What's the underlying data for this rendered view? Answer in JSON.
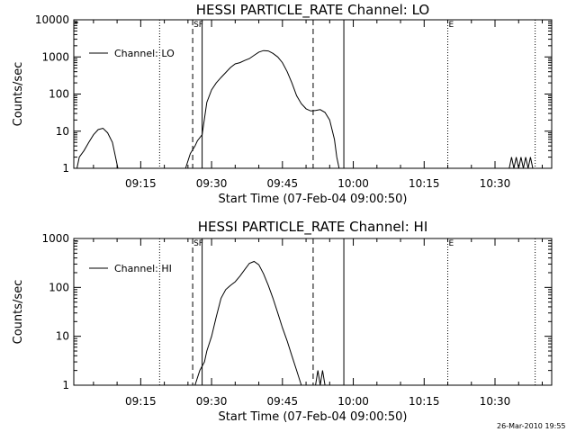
{
  "stamp": "26-Mar-2010 19:55",
  "chart_data": [
    {
      "type": "line",
      "title": "HESSI PARTICLE_RATE Channel: LO",
      "xlabel": "Start Time (07-Feb-04 09:00:50)",
      "ylabel": "Counts/sec",
      "yscale": "log",
      "ylim": [
        1,
        10000
      ],
      "xlim": [
        "09:00:50",
        "10:42:00"
      ],
      "ytick_labels": [
        "1",
        "10",
        "100",
        "1000",
        "10000"
      ],
      "xtick_labels": [
        "09:15",
        "09:30",
        "09:45",
        "10:00",
        "10:15",
        "10:30"
      ],
      "legend": {
        "placement": "top-left",
        "entries": [
          "Channel: LO"
        ]
      },
      "markers": [
        "SF",
        "E"
      ],
      "dotted_lines": [
        "09:19:00",
        "10:20:00",
        "10:38:30"
      ],
      "dashed_lines": [
        "09:26:00",
        "09:51:30"
      ],
      "solid_lines": [
        "09:28:00",
        "09:58:00"
      ],
      "series": [
        {
          "name": "Channel: LO",
          "segments": [
            [
              [
                "09:01:30",
                1.0
              ],
              [
                "09:02:00",
                2.0
              ],
              [
                "09:03:00",
                3.0
              ],
              [
                "09:04:00",
                5.0
              ],
              [
                "09:05:00",
                8.0
              ],
              [
                "09:06:00",
                11.0
              ],
              [
                "09:07:00",
                12.0
              ],
              [
                "09:08:00",
                9.0
              ],
              [
                "09:09:00",
                5.0
              ],
              [
                "09:09:40",
                2.0
              ],
              [
                "09:10:10",
                1.0
              ]
            ],
            [
              [
                "09:24:30",
                1.0
              ],
              [
                "09:25:30",
                2.5
              ],
              [
                "09:26:30",
                4.0
              ],
              [
                "09:27:00",
                5.5
              ],
              [
                "09:28:00",
                8.0
              ],
              [
                "09:29:00",
                60.0
              ],
              [
                "09:30:00",
                130.0
              ],
              [
                "09:31:00",
                200.0
              ],
              [
                "09:32:00",
                280.0
              ],
              [
                "09:33:00",
                380.0
              ],
              [
                "09:34:00",
                520.0
              ],
              [
                "09:35:00",
                650.0
              ],
              [
                "09:36:00",
                700.0
              ],
              [
                "09:37:00",
                800.0
              ],
              [
                "09:38:00",
                900.0
              ],
              [
                "09:39:00",
                1100.0
              ],
              [
                "09:40:00",
                1350.0
              ],
              [
                "09:41:00",
                1480.0
              ],
              [
                "09:42:00",
                1450.0
              ],
              [
                "09:43:00",
                1250.0
              ],
              [
                "09:44:00",
                1000.0
              ],
              [
                "09:45:00",
                700.0
              ],
              [
                "09:46:00",
                400.0
              ],
              [
                "09:47:00",
                200.0
              ],
              [
                "09:48:00",
                90.0
              ],
              [
                "09:49:00",
                55.0
              ],
              [
                "09:50:00",
                40.0
              ],
              [
                "09:51:00",
                35.0
              ],
              [
                "09:52:00",
                36.0
              ],
              [
                "09:53:00",
                38.0
              ],
              [
                "09:54:00",
                32.0
              ],
              [
                "09:55:00",
                20.0
              ],
              [
                "09:56:00",
                6.0
              ],
              [
                "09:56:30",
                2.0
              ],
              [
                "09:57:00",
                1.0
              ]
            ],
            [
              [
                "10:33:00",
                1.0
              ],
              [
                "10:33:30",
                2.0
              ],
              [
                "10:34:00",
                1.0
              ],
              [
                "10:34:30",
                2.0
              ],
              [
                "10:35:00",
                1.0
              ],
              [
                "10:35:30",
                2.0
              ],
              [
                "10:36:00",
                1.0
              ],
              [
                "10:36:30",
                2.0
              ],
              [
                "10:37:00",
                1.0
              ],
              [
                "10:37:30",
                2.0
              ],
              [
                "10:38:00",
                1.0
              ]
            ]
          ]
        }
      ]
    },
    {
      "type": "line",
      "title": "HESSI PARTICLE_RATE Channel: HI",
      "xlabel": "Start Time (07-Feb-04 09:00:50)",
      "ylabel": "Counts/sec",
      "yscale": "log",
      "ylim": [
        1,
        1000
      ],
      "xlim": [
        "09:00:50",
        "10:42:00"
      ],
      "ytick_labels": [
        "1",
        "10",
        "100",
        "1000"
      ],
      "xtick_labels": [
        "09:15",
        "09:30",
        "09:45",
        "10:00",
        "10:15",
        "10:30"
      ],
      "legend": {
        "placement": "top-left",
        "entries": [
          "Channel: HI"
        ]
      },
      "markers": [
        "SF",
        "E"
      ],
      "dotted_lines": [
        "09:19:00",
        "10:20:00",
        "10:38:30"
      ],
      "dashed_lines": [
        "09:26:00",
        "09:51:30"
      ],
      "solid_lines": [
        "09:28:00",
        "09:58:00"
      ],
      "series": [
        {
          "name": "Channel: HI",
          "segments": [
            [
              [
                "09:26:30",
                1.0
              ],
              [
                "09:27:30",
                2.0
              ],
              [
                "09:28:30",
                3.0
              ],
              [
                "09:29:00",
                5.0
              ],
              [
                "09:30:00",
                10.0
              ],
              [
                "09:31:00",
                25.0
              ],
              [
                "09:32:00",
                60.0
              ],
              [
                "09:33:00",
                90.0
              ],
              [
                "09:34:00",
                110.0
              ],
              [
                "09:35:00",
                130.0
              ],
              [
                "09:36:00",
                170.0
              ],
              [
                "09:37:00",
                230.0
              ],
              [
                "09:38:00",
                310.0
              ],
              [
                "09:39:00",
                340.0
              ],
              [
                "09:40:00",
                290.0
              ],
              [
                "09:41:00",
                190.0
              ],
              [
                "09:42:00",
                110.0
              ],
              [
                "09:43:00",
                60.0
              ],
              [
                "09:44:00",
                30.0
              ],
              [
                "09:45:00",
                15.0
              ],
              [
                "09:46:00",
                8.0
              ],
              [
                "09:47:00",
                4.0
              ],
              [
                "09:48:00",
                2.0
              ],
              [
                "09:49:00",
                1.0
              ]
            ],
            [
              [
                "09:52:00",
                1.0
              ],
              [
                "09:52:30",
                2.0
              ],
              [
                "09:53:00",
                1.0
              ],
              [
                "09:53:30",
                2.0
              ],
              [
                "09:54:00",
                1.0
              ]
            ]
          ]
        }
      ]
    }
  ]
}
